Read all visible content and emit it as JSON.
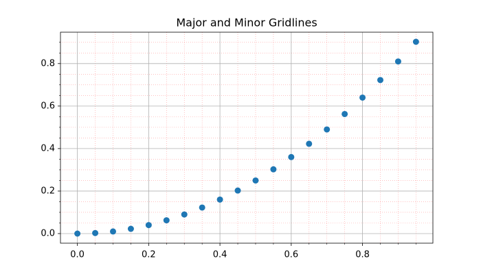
{
  "chart_data": {
    "type": "scatter",
    "title": "Major and Minor Gridlines",
    "x": [
      0,
      0.05,
      0.1,
      0.15,
      0.2,
      0.25,
      0.3,
      0.35,
      0.4,
      0.45,
      0.5,
      0.55,
      0.6,
      0.65,
      0.7,
      0.75,
      0.8,
      0.85,
      0.9,
      0.95
    ],
    "series": [
      {
        "color": "#1f77b4",
        "values": [
          0,
          0.0025,
          0.01,
          0.0225,
          0.04,
          0.0625,
          0.09,
          0.1225,
          0.16,
          0.2025,
          0.25,
          0.3025,
          0.36,
          0.4225,
          0.49,
          0.5625,
          0.64,
          0.7225,
          0.81,
          0.9025
        ]
      }
    ],
    "xlim": [
      -0.0475,
      0.9975
    ],
    "ylim": [
      -0.045125,
      0.947625
    ],
    "xticks": [
      {
        "value": 0,
        "label": "0.0"
      },
      {
        "value": 0.2,
        "label": "0.2"
      },
      {
        "value": 0.4,
        "label": "0.4"
      },
      {
        "value": 0.6,
        "label": "0.6"
      },
      {
        "value": 0.8,
        "label": "0.8"
      }
    ],
    "yticks": [
      {
        "value": 0,
        "label": "0.0"
      },
      {
        "value": 0.2,
        "label": "0.2"
      },
      {
        "value": 0.4,
        "label": "0.4"
      },
      {
        "value": 0.6,
        "label": "0.6"
      },
      {
        "value": 0.8,
        "label": "0.8"
      }
    ],
    "xminorticks": [
      0.05,
      0.1,
      0.15,
      0.25,
      0.3,
      0.35,
      0.45,
      0.5,
      0.55,
      0.65,
      0.7,
      0.75,
      0.85,
      0.9,
      0.95
    ],
    "yminorticks": [
      0.05,
      0.1,
      0.15,
      0.25,
      0.3,
      0.35,
      0.45,
      0.5,
      0.55,
      0.65,
      0.7,
      0.75,
      0.85,
      0.9
    ],
    "grid": true,
    "major_grid_color": "#b0b0b0",
    "minor_grid_color": "#ff9999"
  }
}
